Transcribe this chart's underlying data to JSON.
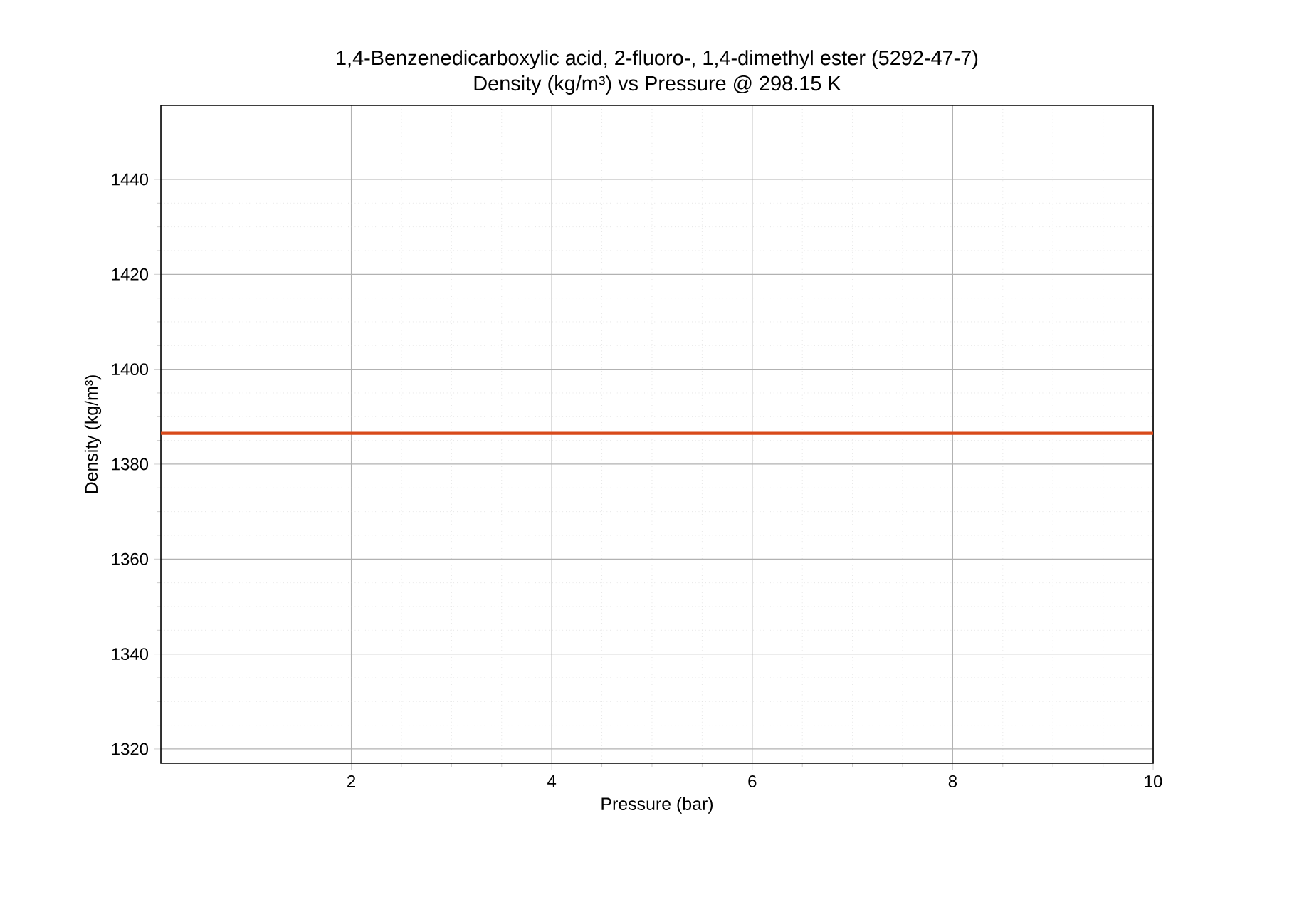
{
  "chart_data": {
    "type": "line",
    "title": "1,4-Benzenedicarboxylic acid, 2-fluoro-, 1,4-dimethyl ester (5292-47-7)",
    "subtitle": "Density (kg/m³) vs Pressure @ 298.15 K",
    "xlabel": "Pressure (bar)",
    "ylabel": "Density (kg/m³)",
    "x": [
      0.1,
      10
    ],
    "series": [
      {
        "color": "#d84a1b",
        "values": [
          1386.5,
          1386.5
        ]
      }
    ],
    "xlim": [
      0.1,
      10
    ],
    "ylim": [
      1317,
      1455.6
    ],
    "xticks": [
      2,
      4,
      6,
      8,
      10
    ],
    "yticks": [
      1320,
      1340,
      1360,
      1380,
      1400,
      1420,
      1440
    ],
    "grid": true,
    "marker": "none",
    "line_style": "solid"
  }
}
